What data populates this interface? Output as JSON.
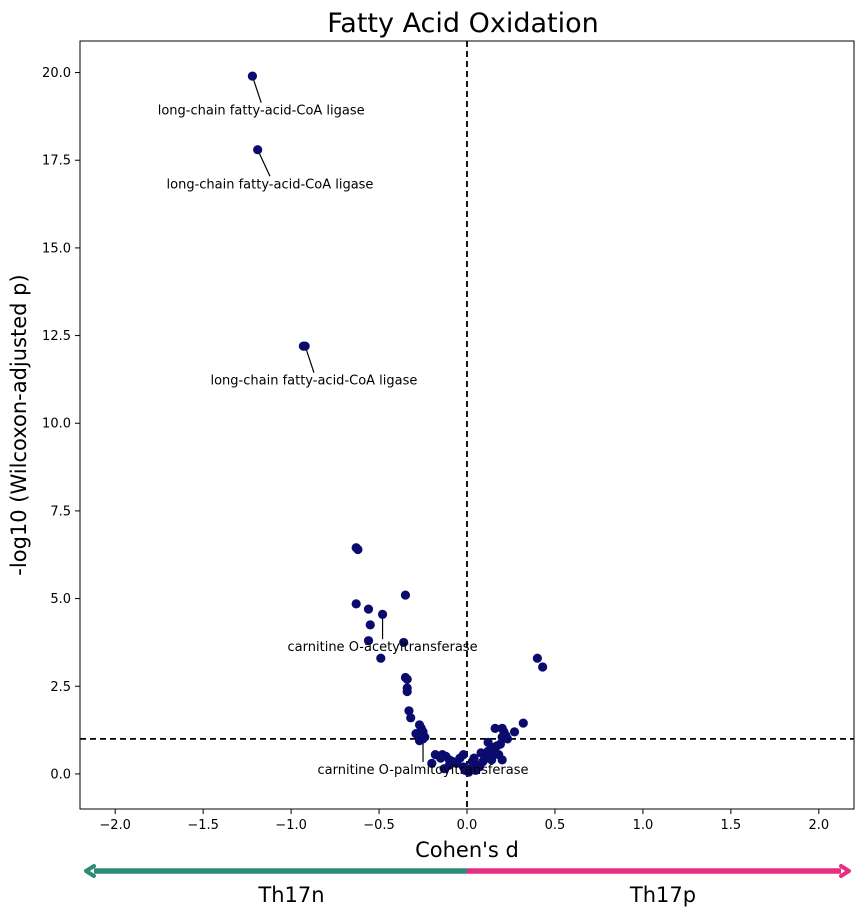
{
  "chart_data": {
    "type": "scatter",
    "title": "Fatty Acid Oxidation",
    "xlabel": "Cohen's d",
    "ylabel": "-log10 (Wilcoxon-adjusted p)",
    "xlim": [
      -2.2,
      2.2
    ],
    "ylim": [
      -1.0,
      20.9
    ],
    "x_ticks": [
      -2.0,
      -1.5,
      -1.0,
      -0.5,
      0.0,
      0.5,
      1.0,
      1.5,
      2.0
    ],
    "x_tick_labels": [
      "−2.0",
      "−1.5",
      "−1.0",
      "−0.5",
      "0.0",
      "0.5",
      "1.0",
      "1.5",
      "2.0"
    ],
    "y_ticks": [
      0.0,
      2.5,
      5.0,
      7.5,
      10.0,
      12.5,
      15.0,
      17.5,
      20.0
    ],
    "y_tick_labels": [
      "0.0",
      "2.5",
      "5.0",
      "7.5",
      "10.0",
      "12.5",
      "15.0",
      "17.5",
      "20.0"
    ],
    "grid": false,
    "point_color": "#0b0b6e",
    "reference_lines": {
      "vertical_x": 0.0,
      "horizontal_y": 1.0
    },
    "points": [
      {
        "x": -1.22,
        "y": 19.9
      },
      {
        "x": -1.19,
        "y": 17.8
      },
      {
        "x": -0.93,
        "y": 12.2
      },
      {
        "x": -0.92,
        "y": 12.2
      },
      {
        "x": -0.63,
        "y": 6.45
      },
      {
        "x": -0.62,
        "y": 6.4
      },
      {
        "x": -0.63,
        "y": 4.85
      },
      {
        "x": -0.56,
        "y": 4.7
      },
      {
        "x": -0.48,
        "y": 4.55
      },
      {
        "x": -0.35,
        "y": 5.1
      },
      {
        "x": -0.55,
        "y": 4.25
      },
      {
        "x": -0.56,
        "y": 3.8
      },
      {
        "x": -0.36,
        "y": 3.75
      },
      {
        "x": -0.49,
        "y": 3.3
      },
      {
        "x": -0.35,
        "y": 2.75
      },
      {
        "x": -0.34,
        "y": 2.7
      },
      {
        "x": -0.34,
        "y": 2.45
      },
      {
        "x": -0.34,
        "y": 2.35
      },
      {
        "x": -0.33,
        "y": 1.8
      },
      {
        "x": -0.32,
        "y": 1.6
      },
      {
        "x": -0.27,
        "y": 1.4
      },
      {
        "x": -0.26,
        "y": 1.3
      },
      {
        "x": -0.29,
        "y": 1.15
      },
      {
        "x": -0.25,
        "y": 1.2
      },
      {
        "x": -0.24,
        "y": 1.05
      },
      {
        "x": -0.27,
        "y": 0.95
      },
      {
        "x": -0.25,
        "y": 1.0
      },
      {
        "x": -0.18,
        "y": 0.55
      },
      {
        "x": -0.14,
        "y": 0.55
      },
      {
        "x": -0.12,
        "y": 0.5
      },
      {
        "x": -0.15,
        "y": 0.45
      },
      {
        "x": -0.1,
        "y": 0.4
      },
      {
        "x": -0.08,
        "y": 0.35
      },
      {
        "x": -0.1,
        "y": 0.25
      },
      {
        "x": -0.06,
        "y": 0.3
      },
      {
        "x": -0.04,
        "y": 0.45
      },
      {
        "x": -0.02,
        "y": 0.55
      },
      {
        "x": -0.02,
        "y": 0.2
      },
      {
        "x": -0.01,
        "y": 0.1
      },
      {
        "x": 0.01,
        "y": 0.05
      },
      {
        "x": 0.02,
        "y": 0.15
      },
      {
        "x": 0.03,
        "y": 0.35
      },
      {
        "x": 0.04,
        "y": 0.45
      },
      {
        "x": 0.06,
        "y": 0.25
      },
      {
        "x": 0.07,
        "y": 0.2
      },
      {
        "x": 0.09,
        "y": 0.35
      },
      {
        "x": 0.1,
        "y": 0.5
      },
      {
        "x": 0.11,
        "y": 0.45
      },
      {
        "x": 0.12,
        "y": 0.65
      },
      {
        "x": 0.14,
        "y": 0.55
      },
      {
        "x": 0.15,
        "y": 0.75
      },
      {
        "x": 0.16,
        "y": 0.6
      },
      {
        "x": 0.17,
        "y": 0.8
      },
      {
        "x": 0.19,
        "y": 0.85
      },
      {
        "x": 0.2,
        "y": 1.05
      },
      {
        "x": 0.21,
        "y": 1.2
      },
      {
        "x": 0.22,
        "y": 1.1
      },
      {
        "x": 0.16,
        "y": 1.3
      },
      {
        "x": 0.2,
        "y": 1.3
      },
      {
        "x": 0.23,
        "y": 1.0
      },
      {
        "x": 0.27,
        "y": 1.2
      },
      {
        "x": 0.32,
        "y": 1.45
      },
      {
        "x": 0.12,
        "y": 0.9
      },
      {
        "x": 0.14,
        "y": 0.4
      },
      {
        "x": 0.2,
        "y": 0.4
      },
      {
        "x": 0.18,
        "y": 0.55
      },
      {
        "x": 0.4,
        "y": 3.3
      },
      {
        "x": 0.43,
        "y": 3.05
      },
      {
        "x": -0.2,
        "y": 0.3
      },
      {
        "x": -0.13,
        "y": 0.15
      },
      {
        "x": 0.05,
        "y": 0.1
      },
      {
        "x": 0.08,
        "y": 0.6
      }
    ],
    "annotations": [
      {
        "text": "long-chain fatty-acid-CoA ligase",
        "point": [
          -1.22,
          19.9
        ],
        "text_pos": [
          -1.17,
          18.8
        ]
      },
      {
        "text": "long-chain fatty-acid-CoA ligase",
        "point": [
          -1.19,
          17.8
        ],
        "text_pos": [
          -1.12,
          16.7
        ]
      },
      {
        "text": "long-chain fatty-acid-CoA ligase",
        "point": [
          -0.92,
          12.2
        ],
        "text_pos": [
          -0.87,
          11.1
        ]
      },
      {
        "text": "carnitine O-acetyltransferase",
        "point": [
          -0.48,
          4.55
        ],
        "text_pos": [
          -0.48,
          3.5
        ]
      },
      {
        "text": "carnitine O-palmitoyltransferase",
        "point": [
          -0.25,
          1.05
        ],
        "text_pos": [
          -0.25,
          0.0
        ]
      }
    ],
    "groups": [
      {
        "label": "Th17n",
        "color": "#2e8b74",
        "direction": "left"
      },
      {
        "label": "Th17p",
        "color": "#e62e85",
        "direction": "right"
      }
    ]
  }
}
